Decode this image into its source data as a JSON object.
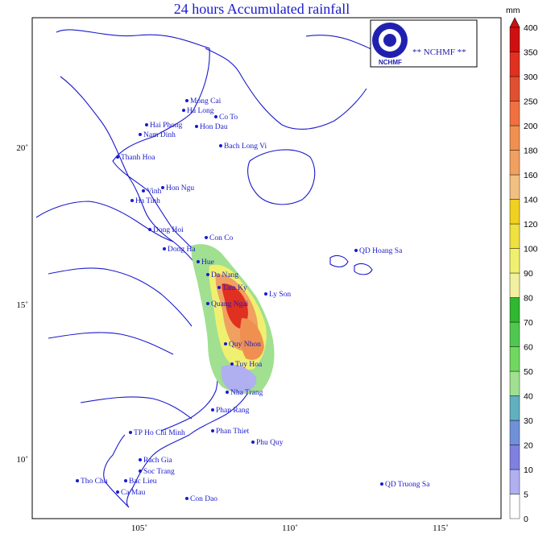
{
  "title": "24 hours Accumulated rainfall",
  "logo": {
    "text": "NCHMF",
    "tag": "** NCHMF **"
  },
  "colorbar": {
    "unit": "mm",
    "levels": [
      "0",
      "5",
      "10",
      "20",
      "30",
      "40",
      "50",
      "60",
      "70",
      "80",
      "90",
      "100",
      "120",
      "140",
      "160",
      "180",
      "200",
      "250",
      "300",
      "350",
      "400"
    ],
    "colors": [
      "#ffffff",
      "#b0b0f0",
      "#8080e0",
      "#7090d8",
      "#60b0c0",
      "#a0e090",
      "#70d860",
      "#50c850",
      "#30b830",
      "#f0f0a0",
      "#f0f070",
      "#f0e040",
      "#f0d020",
      "#f0c080",
      "#f0a060",
      "#f09050",
      "#f07040",
      "#e05030",
      "#e03020",
      "#d01010"
    ]
  },
  "axes": {
    "x_ticks": [
      "105˚",
      "110˚",
      "115˚"
    ],
    "y_ticks": [
      "20˚",
      "15˚",
      "10˚"
    ]
  },
  "places": [
    {
      "name": "Mong Cai"
    },
    {
      "name": "Ha Long"
    },
    {
      "name": "Hai Phong"
    },
    {
      "name": "Nam Dinh"
    },
    {
      "name": "Co To"
    },
    {
      "name": "Hon Dau"
    },
    {
      "name": "Bach Long Vi"
    },
    {
      "name": "Thanh Hoa"
    },
    {
      "name": "Vinh"
    },
    {
      "name": "Hon Ngu"
    },
    {
      "name": "Ha Tinh"
    },
    {
      "name": "Dong Hoi"
    },
    {
      "name": "Con Co"
    },
    {
      "name": "Dong Ha"
    },
    {
      "name": "Hue"
    },
    {
      "name": "Da Nang"
    },
    {
      "name": "Tam Ky"
    },
    {
      "name": "Quang Ngai"
    },
    {
      "name": "Ly Son"
    },
    {
      "name": "Quy Nhon"
    },
    {
      "name": "Tuy Hoa"
    },
    {
      "name": "Nha Trang"
    },
    {
      "name": "Phan Rang"
    },
    {
      "name": "Phan Thiet"
    },
    {
      "name": "Phu Quy"
    },
    {
      "name": "TP Ho Chi Minh"
    },
    {
      "name": "Rach Gia"
    },
    {
      "name": "Soc Trang"
    },
    {
      "name": "Bac Lieu"
    },
    {
      "name": "Ca Mau"
    },
    {
      "name": "Tho Chu"
    },
    {
      "name": "Con Dao"
    },
    {
      "name": "QD Hoang Sa"
    },
    {
      "name": "QD Truong Sa"
    }
  ]
}
